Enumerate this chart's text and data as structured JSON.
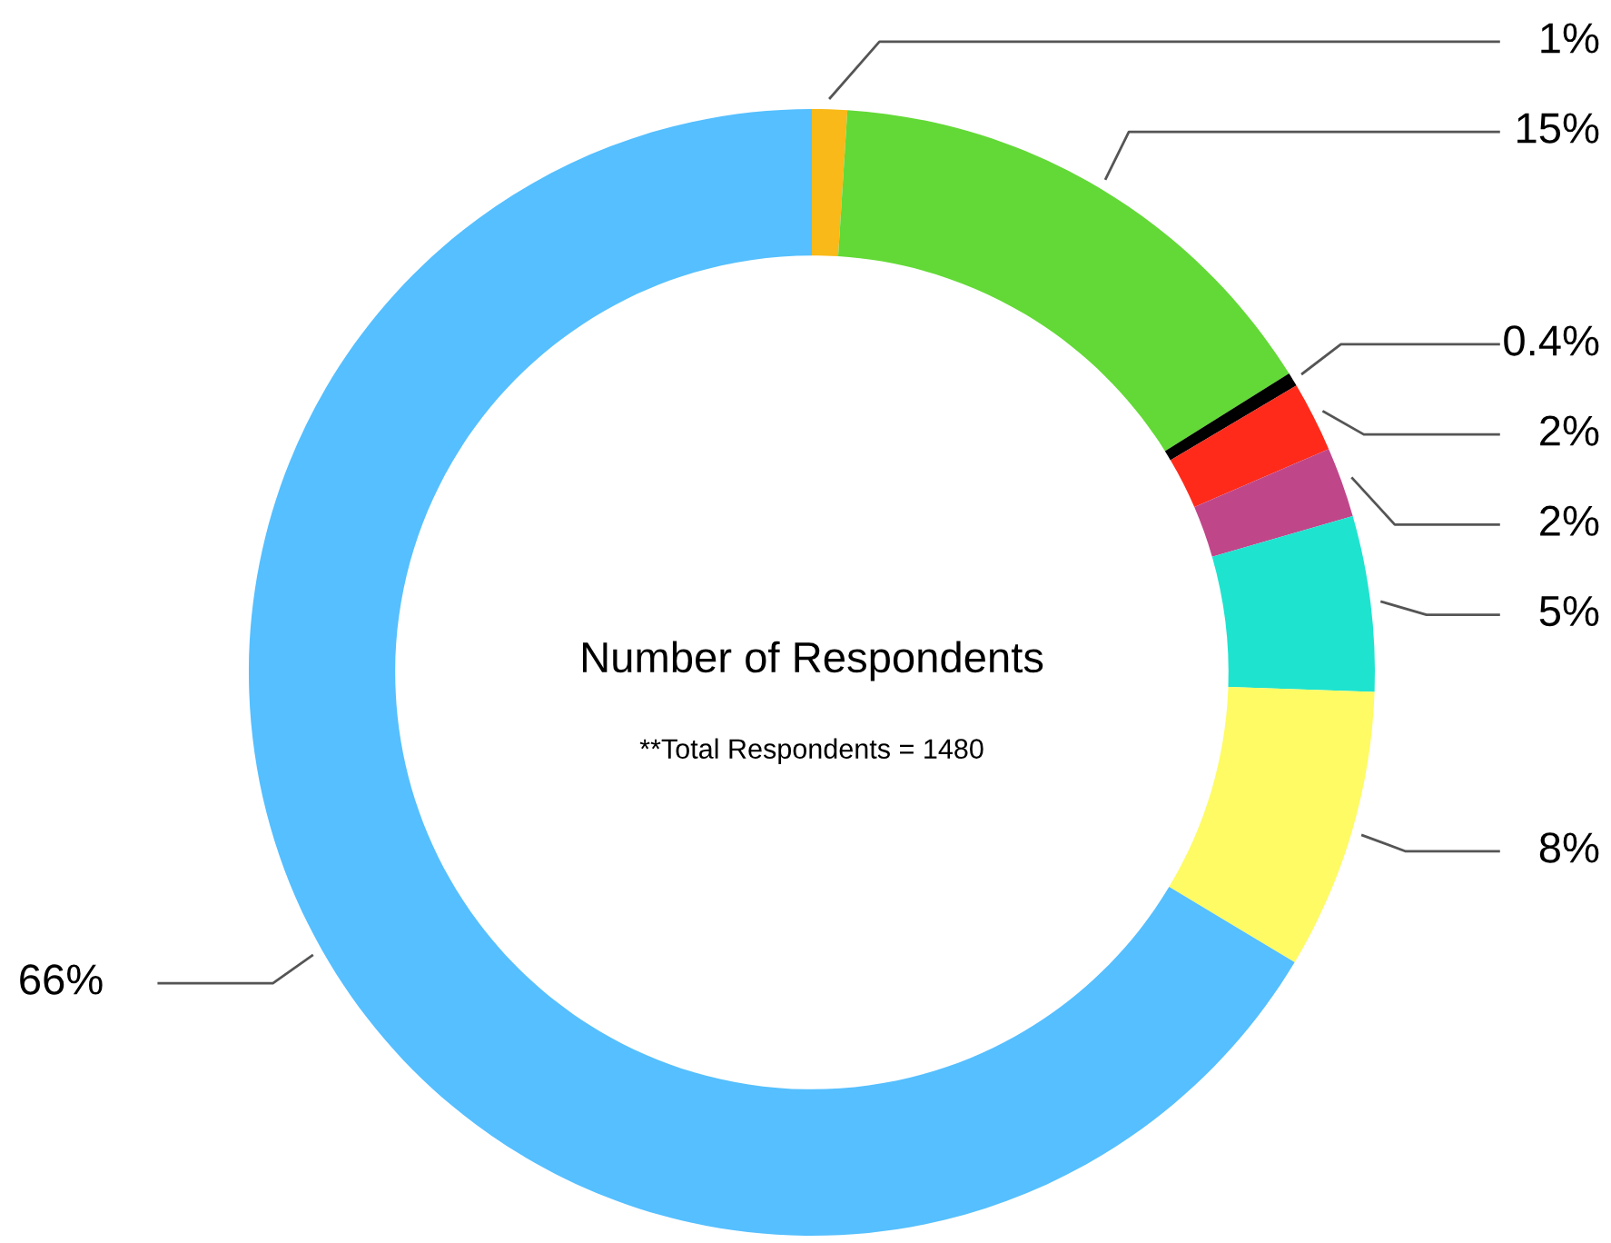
{
  "chart_data": {
    "type": "donut",
    "title": "Number of Respondents",
    "annotations": [
      "**Total Respondents = 1480"
    ],
    "categories": [
      null,
      null,
      null,
      null,
      null,
      null,
      null,
      null
    ],
    "values": [
      1,
      15,
      0.4,
      2,
      2,
      5,
      8,
      66
    ],
    "value_labels": [
      "1%",
      "15%",
      "0.4%",
      "2%",
      "2%",
      "5%",
      "8%",
      "66%"
    ],
    "colors": [
      "#f9b918",
      "#62d936",
      "#000000",
      "#ff2a1a",
      "#c0468a",
      "#1ee3cf",
      "#fefb64",
      "#55bfff"
    ],
    "legend": false
  }
}
